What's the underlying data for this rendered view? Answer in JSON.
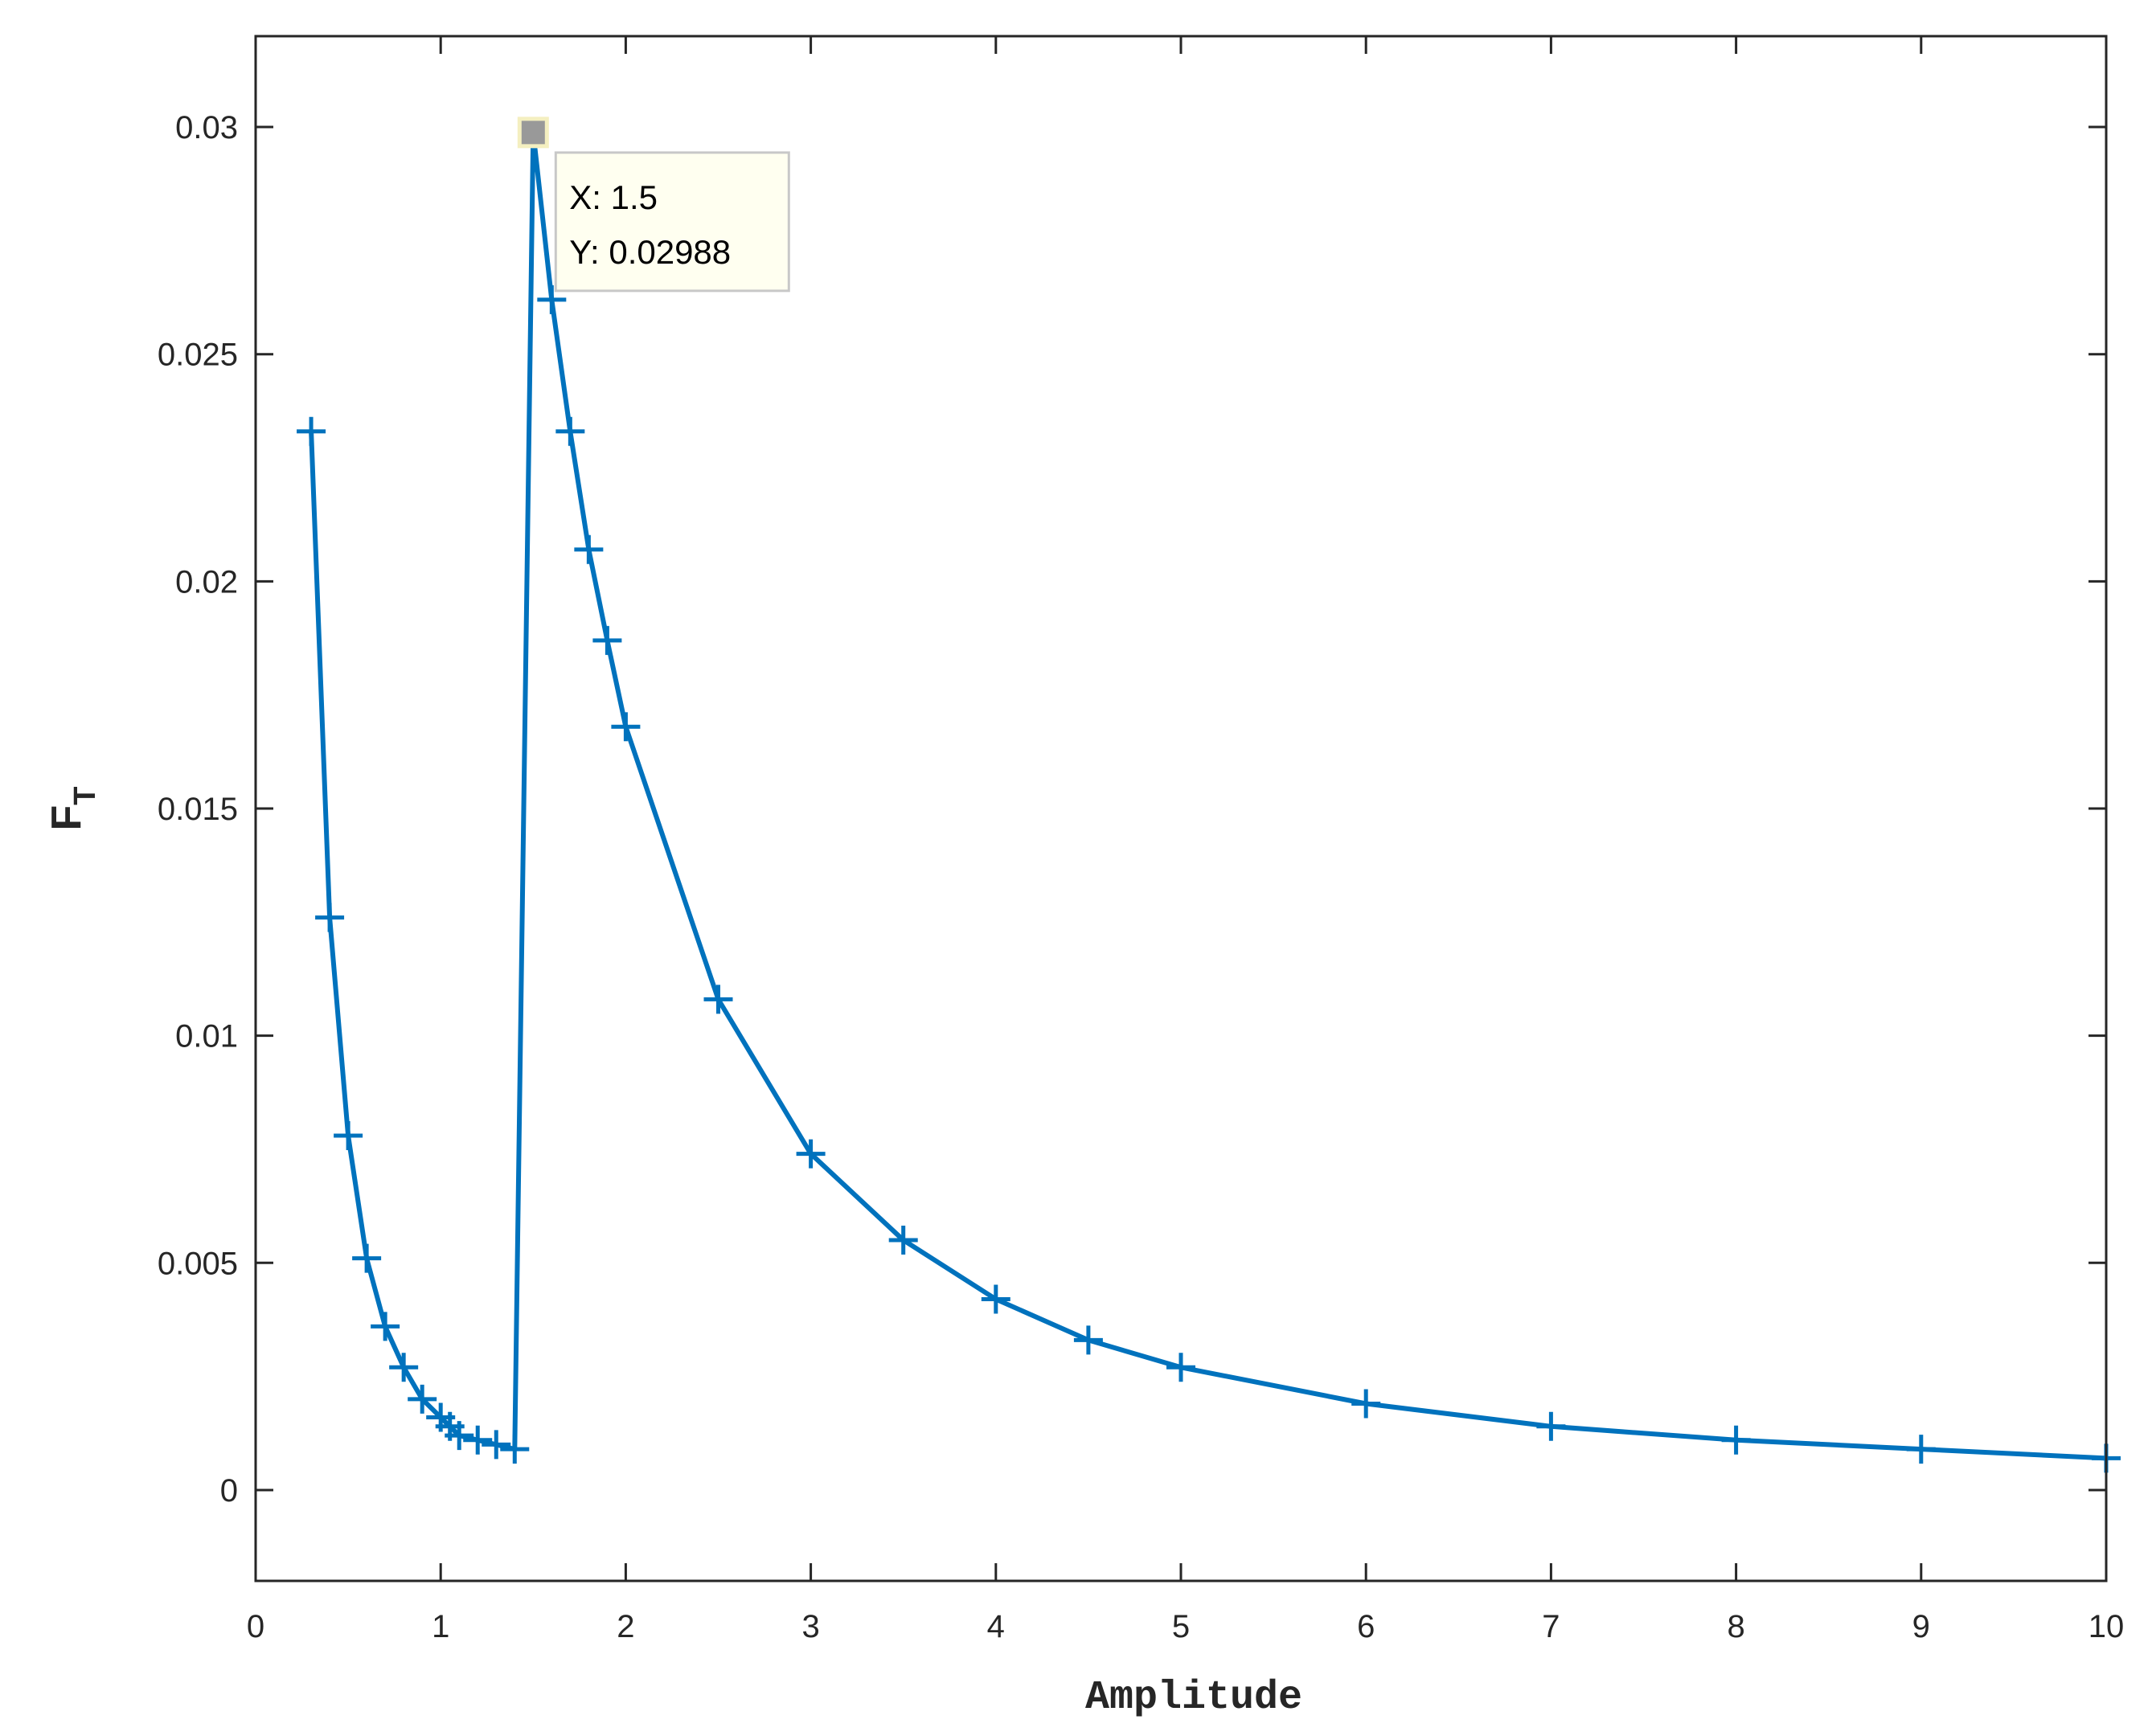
{
  "chart_data": {
    "type": "line",
    "xlabel": "Amplitude",
    "ylabel": "F",
    "ylabel_subscript": "T",
    "xlim": [
      0,
      10
    ],
    "ylim": [
      -0.002,
      0.032
    ],
    "xticks": [
      0,
      1,
      2,
      3,
      4,
      5,
      6,
      7,
      8,
      9,
      10
    ],
    "xtick_labels": [
      "0",
      "1",
      "2",
      "3",
      "4",
      "5",
      "6",
      "7",
      "8",
      "9",
      "10"
    ],
    "yticks": [
      0,
      0.005,
      0.01,
      0.015,
      0.02,
      0.025,
      0.03
    ],
    "ytick_labels": [
      "0",
      "0.005",
      "0.01",
      "0.015",
      "0.02",
      "0.025",
      "0.03"
    ],
    "grid": false,
    "series": [
      {
        "color": "#0072BD",
        "marker": "+",
        "x": [
          0.3,
          0.4,
          0.5,
          0.6,
          0.7,
          0.8,
          0.9,
          1.0,
          1.05,
          1.1,
          1.2,
          1.3,
          1.4,
          1.5,
          1.6,
          1.7,
          1.8,
          1.9,
          2.0,
          2.5,
          3.0,
          3.5,
          4.0,
          4.5,
          5.0,
          6.0,
          7.0,
          8.0,
          9.0,
          10.0
        ],
        "y": [
          0.0233,
          0.0126,
          0.0078,
          0.0051,
          0.0036,
          0.0027,
          0.002,
          0.0016,
          0.0014,
          0.0012,
          0.0011,
          0.001,
          0.0009,
          0.02988,
          0.0262,
          0.0233,
          0.0207,
          0.0187,
          0.0168,
          0.0108,
          0.0074,
          0.0055,
          0.0042,
          0.0033,
          0.0027,
          0.0019,
          0.0014,
          0.0011,
          0.0009,
          0.0007
        ]
      }
    ],
    "datatip": {
      "x": 1.5,
      "y": 0.02988,
      "x_text": "X: 1.5",
      "y_text": "Y: 0.02988"
    }
  }
}
